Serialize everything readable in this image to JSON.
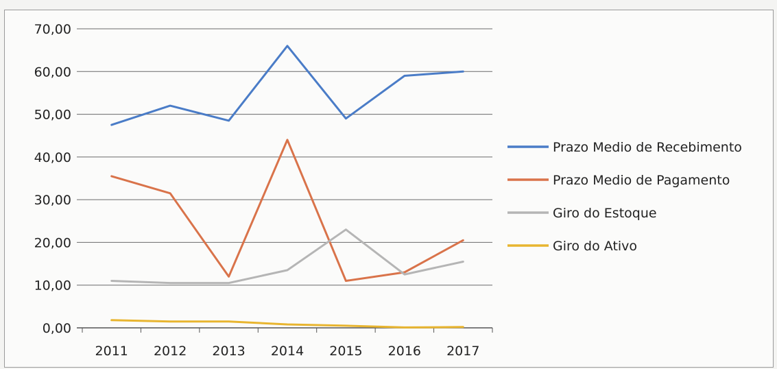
{
  "chart_data": {
    "type": "line",
    "categories": [
      "2011",
      "2012",
      "2013",
      "2014",
      "2015",
      "2016",
      "2017"
    ],
    "y_tick_labels": [
      "0,00",
      "10,00",
      "20,00",
      "30,00",
      "40,00",
      "50,00",
      "60,00",
      "70,00"
    ],
    "ylim": [
      0,
      70
    ],
    "grid": true,
    "legend_position": "right",
    "series": [
      {
        "name": "Prazo Medio de Recebimento",
        "color": "#4a7cc7",
        "values": [
          47.5,
          52.0,
          48.5,
          66.0,
          49.0,
          59.0,
          60.0
        ]
      },
      {
        "name": "Prazo Medio de Pagamento",
        "color": "#d9734a",
        "values": [
          35.5,
          31.5,
          12.0,
          44.0,
          11.0,
          13.0,
          20.5
        ]
      },
      {
        "name": "Giro do Estoque",
        "color": "#b5b5b5",
        "values": [
          11.0,
          10.5,
          10.5,
          13.5,
          23.0,
          12.5,
          15.5
        ]
      },
      {
        "name": "Giro do Ativo",
        "color": "#e8b530",
        "values": [
          1.8,
          1.5,
          1.5,
          0.8,
          0.5,
          0.1,
          0.2
        ]
      }
    ]
  }
}
